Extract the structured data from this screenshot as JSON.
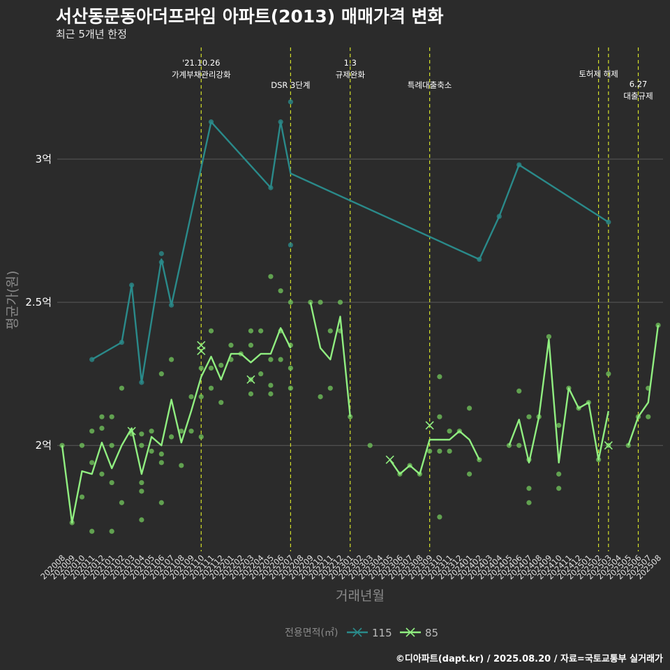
{
  "header": {
    "title": "서산동문동아더프라임 아파트(2013) 매매가격 변화",
    "subtitle": "최근 5개년 한정"
  },
  "caption": "©디아파트(dapt.kr) / 2025.08.20 / 자료=국토교통부 실거래가",
  "colors": {
    "background": "#2b2b2b",
    "grid": "#5a5a5a",
    "series_115": "#2a8a8a",
    "series_85": "#90ee80",
    "event_line": "#d4e02a",
    "points_85": "#6fbf5a",
    "points_115": "#2a8a8a"
  },
  "chart_data": {
    "type": "line",
    "xlabel": "거래년월",
    "ylabel": "평균가(원)",
    "ylim": [
      1.63,
      3.39
    ],
    "yticks": [
      {
        "value": 2.0,
        "label": "2억"
      },
      {
        "value": 2.5,
        "label": "2.5억"
      },
      {
        "value": 3.0,
        "label": "3억"
      }
    ],
    "grid": true,
    "categories": [
      "202008",
      "202009",
      "202010",
      "202011",
      "202012",
      "202101",
      "202102",
      "202103",
      "202104",
      "202105",
      "202106",
      "202107",
      "202108",
      "202109",
      "202110",
      "202111",
      "202112",
      "202201",
      "202202",
      "202203",
      "202204",
      "202205",
      "202206",
      "202207",
      "202208",
      "202209",
      "202210",
      "202211",
      "202212",
      "202301",
      "202302",
      "202303",
      "202304",
      "202305",
      "202306",
      "202307",
      "202308",
      "202309",
      "202310",
      "202311",
      "202312",
      "202401",
      "202402",
      "202403",
      "202404",
      "202405",
      "202406",
      "202407",
      "202408",
      "202409",
      "202410",
      "202411",
      "202412",
      "202501",
      "202502",
      "202503",
      "202504",
      "202505",
      "202506",
      "202507",
      "202508"
    ],
    "legend": {
      "title": "전용면적(㎡)",
      "position": "bottom"
    },
    "series": [
      {
        "name": "115",
        "color": "#2a8a8a",
        "line": [
          [
            "202011",
            2.3
          ],
          [
            "202102",
            2.36
          ],
          [
            "202103",
            2.56
          ],
          [
            "202104",
            2.22
          ],
          [
            "202106",
            2.65
          ],
          [
            "202107",
            2.49
          ],
          [
            "202111",
            3.13
          ],
          [
            "202205",
            2.9
          ],
          [
            "202206",
            3.13
          ],
          [
            "202207",
            2.95
          ],
          [
            "202402",
            2.65
          ],
          [
            "202404",
            2.8
          ],
          [
            "202406",
            2.98
          ],
          [
            "202503",
            2.78
          ]
        ],
        "points": [
          [
            "202011",
            2.3
          ],
          [
            "202102",
            2.36
          ],
          [
            "202103",
            2.56
          ],
          [
            "202104",
            2.22
          ],
          [
            "202106",
            2.67
          ],
          [
            "202106",
            2.64
          ],
          [
            "202107",
            2.49
          ],
          [
            "202111",
            3.13
          ],
          [
            "202205",
            2.9
          ],
          [
            "202206",
            3.13
          ],
          [
            "202207",
            3.2
          ],
          [
            "202207",
            2.7
          ],
          [
            "202402",
            2.65
          ],
          [
            "202404",
            2.8
          ],
          [
            "202406",
            2.98
          ],
          [
            "202503",
            2.78
          ]
        ]
      },
      {
        "name": "85",
        "color": "#90ee80",
        "line": [
          [
            "202008",
            2.0
          ],
          [
            "202009",
            1.73
          ],
          [
            "202010",
            1.91
          ],
          [
            "202011",
            1.9
          ],
          [
            "202012",
            2.01
          ],
          [
            "202101",
            1.92
          ],
          [
            "202102",
            2.0
          ],
          [
            "202103",
            2.06
          ],
          [
            "202104",
            1.9
          ],
          [
            "202105",
            2.03
          ],
          [
            "202106",
            2.0
          ],
          [
            "202107",
            2.16
          ],
          [
            "202108",
            2.01
          ],
          [
            "202109",
            2.12
          ],
          [
            "202110",
            2.24
          ],
          [
            "202111",
            2.31
          ],
          [
            "202112",
            2.23
          ],
          [
            "202201",
            2.32
          ],
          [
            "202202",
            2.32
          ],
          [
            "202203",
            2.29
          ],
          [
            "202204",
            2.32
          ],
          [
            "202205",
            2.32
          ],
          [
            "202206",
            2.41
          ],
          [
            "202207",
            2.34
          ],
          null,
          [
            "202209",
            2.5
          ],
          [
            "202210",
            2.34
          ],
          [
            "202211",
            2.3
          ],
          [
            "202212",
            2.45
          ],
          [
            "202301",
            2.1
          ],
          null,
          [
            "202305",
            1.95
          ],
          [
            "202306",
            1.9
          ],
          [
            "202307",
            1.93
          ],
          [
            "202308",
            1.9
          ],
          [
            "202309",
            2.02
          ],
          [
            "202310",
            2.02
          ],
          [
            "202311",
            2.02
          ],
          [
            "202312",
            2.05
          ],
          [
            "202401",
            2.02
          ],
          [
            "202402",
            1.95
          ],
          null,
          [
            "202405",
            2.0
          ],
          [
            "202406",
            2.09
          ],
          [
            "202407",
            1.94
          ],
          [
            "202408",
            2.1
          ],
          [
            "202409",
            2.37
          ],
          [
            "202410",
            1.94
          ],
          [
            "202411",
            2.2
          ],
          [
            "202412",
            2.13
          ],
          [
            "202501",
            2.15
          ],
          [
            "202502",
            1.95
          ],
          [
            "202503",
            2.12
          ],
          null,
          [
            "202505",
            2.0
          ],
          [
            "202506",
            2.1
          ],
          [
            "202507",
            2.15
          ],
          [
            "202508",
            2.42
          ]
        ],
        "points": [
          [
            "202008",
            2.0
          ],
          [
            "202009",
            1.73
          ],
          [
            "202010",
            1.82
          ],
          [
            "202010",
            2.0
          ],
          [
            "202011",
            1.7
          ],
          [
            "202011",
            1.94
          ],
          [
            "202011",
            2.05
          ],
          [
            "202012",
            1.9
          ],
          [
            "202012",
            2.06
          ],
          [
            "202012",
            2.1
          ],
          [
            "202101",
            1.7
          ],
          [
            "202101",
            1.87
          ],
          [
            "202101",
            2.0
          ],
          [
            "202101",
            2.1
          ],
          [
            "202102",
            1.8
          ],
          [
            "202102",
            2.2
          ],
          [
            "202103",
            2.04
          ],
          [
            "202104",
            1.74
          ],
          [
            "202104",
            1.84
          ],
          [
            "202104",
            1.87
          ],
          [
            "202104",
            2.0
          ],
          [
            "202104",
            2.04
          ],
          [
            "202105",
            1.98
          ],
          [
            "202105",
            2.05
          ],
          [
            "202106",
            1.8
          ],
          [
            "202106",
            1.94
          ],
          [
            "202106",
            1.97
          ],
          [
            "202106",
            2.25
          ],
          [
            "202107",
            2.03
          ],
          [
            "202107",
            2.3
          ],
          [
            "202108",
            1.93
          ],
          [
            "202108",
            2.05
          ],
          [
            "202109",
            2.05
          ],
          [
            "202109",
            2.17
          ],
          [
            "202110",
            2.03
          ],
          [
            "202110",
            2.17
          ],
          [
            "202110",
            2.27
          ],
          [
            "202111",
            2.2
          ],
          [
            "202111",
            2.27
          ],
          [
            "202111",
            2.4
          ],
          [
            "202112",
            2.15
          ],
          [
            "202112",
            2.28
          ],
          [
            "202201",
            2.3
          ],
          [
            "202201",
            2.35
          ],
          [
            "202202",
            2.32
          ],
          [
            "202203",
            2.18
          ],
          [
            "202203",
            2.23
          ],
          [
            "202203",
            2.35
          ],
          [
            "202203",
            2.4
          ],
          [
            "202204",
            2.25
          ],
          [
            "202204",
            2.4
          ],
          [
            "202205",
            2.18
          ],
          [
            "202205",
            2.21
          ],
          [
            "202205",
            2.3
          ],
          [
            "202205",
            2.59
          ],
          [
            "202206",
            2.3
          ],
          [
            "202206",
            2.4
          ],
          [
            "202206",
            2.54
          ],
          [
            "202207",
            2.2
          ],
          [
            "202207",
            2.27
          ],
          [
            "202207",
            2.35
          ],
          [
            "202207",
            2.5
          ],
          [
            "202209",
            2.5
          ],
          [
            "202210",
            2.17
          ],
          [
            "202210",
            2.5
          ],
          [
            "202211",
            2.2
          ],
          [
            "202211",
            2.4
          ],
          [
            "202212",
            2.4
          ],
          [
            "202212",
            2.5
          ],
          [
            "202301",
            2.1
          ],
          [
            "202303",
            2.0
          ],
          [
            "202306",
            1.9
          ],
          [
            "202307",
            1.93
          ],
          [
            "202308",
            1.9
          ],
          [
            "202309",
            1.98
          ],
          [
            "202310",
            1.75
          ],
          [
            "202310",
            1.98
          ],
          [
            "202310",
            2.1
          ],
          [
            "202310",
            2.24
          ],
          [
            "202311",
            1.98
          ],
          [
            "202311",
            2.05
          ],
          [
            "202312",
            2.05
          ],
          [
            "202401",
            1.9
          ],
          [
            "202401",
            2.13
          ],
          [
            "202402",
            1.95
          ],
          [
            "202405",
            2.0
          ],
          [
            "202406",
            2.0
          ],
          [
            "202406",
            2.19
          ],
          [
            "202407",
            1.8
          ],
          [
            "202407",
            1.85
          ],
          [
            "202407",
            1.95
          ],
          [
            "202407",
            2.1
          ],
          [
            "202408",
            2.1
          ],
          [
            "202409",
            2.38
          ],
          [
            "202410",
            1.85
          ],
          [
            "202410",
            1.9
          ],
          [
            "202410",
            2.07
          ],
          [
            "202411",
            2.2
          ],
          [
            "202412",
            2.13
          ],
          [
            "202501",
            2.15
          ],
          [
            "202502",
            1.95
          ],
          [
            "202503",
            2.0
          ],
          [
            "202503",
            2.25
          ],
          [
            "202505",
            2.0
          ],
          [
            "202506",
            2.1
          ],
          [
            "202507",
            2.1
          ],
          [
            "202507",
            2.2
          ],
          [
            "202508",
            2.42
          ]
        ],
        "crosses": [
          [
            "202110",
            2.35
          ],
          [
            "202110",
            2.33
          ],
          [
            "202103",
            2.05
          ],
          [
            "202203",
            2.23
          ],
          [
            "202305",
            1.95
          ],
          [
            "202309",
            2.07
          ],
          [
            "202503",
            2.0
          ]
        ]
      }
    ],
    "events": [
      {
        "x": "202110",
        "label": "'21.10.26\n가계부채관리강화",
        "row": 0
      },
      {
        "x": "202207",
        "label": "DSR 3단계",
        "row": 2
      },
      {
        "x": "202301",
        "label": "1.3\n규제완화",
        "row": 0
      },
      {
        "x": "202309",
        "label": "특례대출축소",
        "row": 2
      },
      {
        "x": "202502",
        "label": "토허제 해제",
        "row": 1
      },
      {
        "x": "202503",
        "label": "",
        "row": 1
      },
      {
        "x": "202506",
        "label": "6.27\n대출규제",
        "row": 1.9
      }
    ]
  }
}
